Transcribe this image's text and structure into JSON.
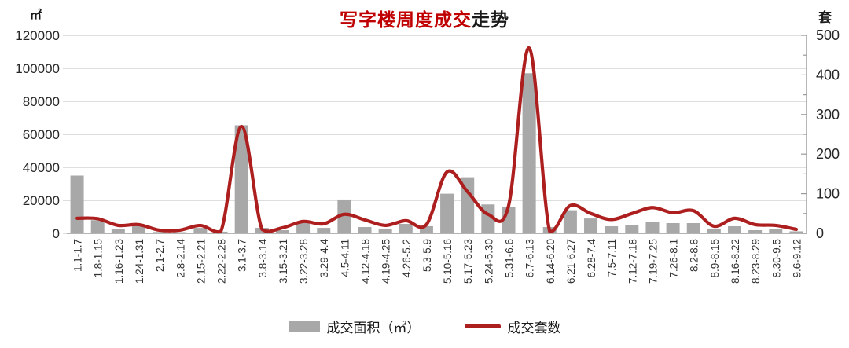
{
  "chart_data": {
    "type": "bar",
    "combo": "bar+line",
    "title": "写字楼周度成交走势",
    "title_red": "写字楼周度成交",
    "title_black": "走势",
    "left_axis": {
      "unit": "㎡",
      "min": 0,
      "max": 120000,
      "step": 20000,
      "ticks": [
        "0",
        "20000",
        "40000",
        "60000",
        "80000",
        "100000",
        "120000"
      ]
    },
    "right_axis": {
      "unit": "套",
      "min": 0,
      "max": 500,
      "step": 100,
      "minor_step": 50,
      "ticks": [
        "0",
        "100",
        "200",
        "300",
        "400",
        "500"
      ]
    },
    "grid": true,
    "legend_position": "bottom",
    "categories": [
      "1.1-1.7",
      "1.8-1.15",
      "1.16-1.23",
      "1.24-1.31",
      "2.1-2.7",
      "2.8-2.14",
      "2.15-2.21",
      "2.22-2.28",
      "3.1-3.7",
      "3.8-3.14",
      "3.15-3.21",
      "3.22-3.28",
      "3.29-4.4",
      "4.5-4.11",
      "4.12-4.18",
      "4.19-4.25",
      "4.26-5.2",
      "5.3-5.9",
      "5.10-5.16",
      "5.17-5.23",
      "5.24-5.30",
      "5.31-6.6",
      "6.7-6.13",
      "6.14-6.20",
      "6.21-6.27",
      "6.28-7.4",
      "7.5-7.11",
      "7.12-7.18",
      "7.19-7.25",
      "7.26-8.1",
      "8.2-8.8",
      "8.9-8.15",
      "8.16-8.22",
      "8.23-8.29",
      "8.30-9.5",
      "9.6-9.12"
    ],
    "series": [
      {
        "name": "成交面积（㎡）",
        "type": "bar",
        "axis": "left",
        "color": "#a8a8a8",
        "values": [
          35000,
          8000,
          2500,
          4500,
          800,
          700,
          3300,
          1000,
          65500,
          3300,
          1900,
          6600,
          3300,
          20500,
          3800,
          2400,
          5700,
          4300,
          24000,
          34000,
          17500,
          16000,
          97000,
          3800,
          14000,
          9000,
          4300,
          5200,
          6800,
          6200,
          6200,
          2900,
          4300,
          1900,
          2400,
          1200
        ]
      },
      {
        "name": "成交套数",
        "type": "line",
        "axis": "right",
        "color": "#ad1e1e",
        "values": [
          38,
          37,
          20,
          22,
          8,
          8,
          20,
          5,
          270,
          10,
          14,
          30,
          24,
          48,
          34,
          20,
          32,
          22,
          155,
          105,
          48,
          70,
          468,
          5,
          70,
          50,
          35,
          50,
          65,
          52,
          57,
          18,
          38,
          22,
          20,
          10
        ]
      }
    ]
  },
  "colors": {
    "title_accent": "#c00000",
    "title_suffix": "#1a1a1a",
    "bar": "#a8a8a8",
    "line": "#ad1e1e",
    "grid": "#c9c9c9",
    "axis": "#9b9b9b",
    "tick_label": "#262626",
    "x_label": "#333333"
  },
  "legend": {
    "area_label": "成交面积（㎡）",
    "line_label": "成交套数"
  }
}
